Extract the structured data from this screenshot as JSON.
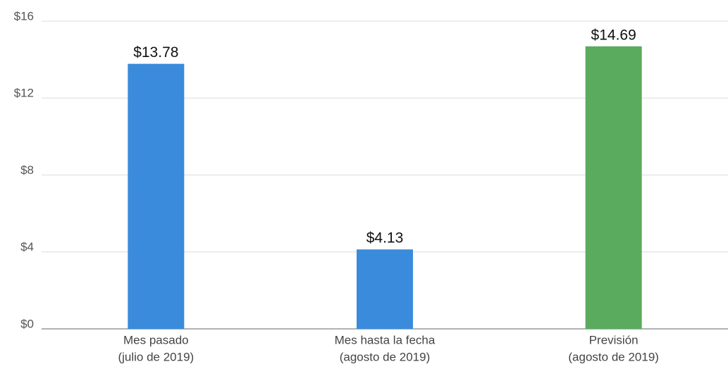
{
  "chart_data": {
    "type": "bar",
    "categories": [
      [
        "Mes pasado",
        "(julio de 2019)"
      ],
      [
        "Mes hasta la fecha",
        "(agosto de 2019)"
      ],
      [
        "Previsión",
        "(agosto de 2019)"
      ]
    ],
    "values": [
      13.78,
      4.13,
      14.69
    ],
    "value_labels": [
      "$13.78",
      "$4.13",
      "$14.69"
    ],
    "colors": [
      "#3a8bdb",
      "#3a8bdb",
      "#5aab5d"
    ],
    "ylim": [
      0,
      16
    ],
    "yticks": [
      {
        "value": 0,
        "label": "$0"
      },
      {
        "value": 4,
        "label": "$4"
      },
      {
        "value": 8,
        "label": "$8"
      },
      {
        "value": 12,
        "label": "$12"
      },
      {
        "value": 16,
        "label": "$16"
      }
    ],
    "grid": true
  }
}
